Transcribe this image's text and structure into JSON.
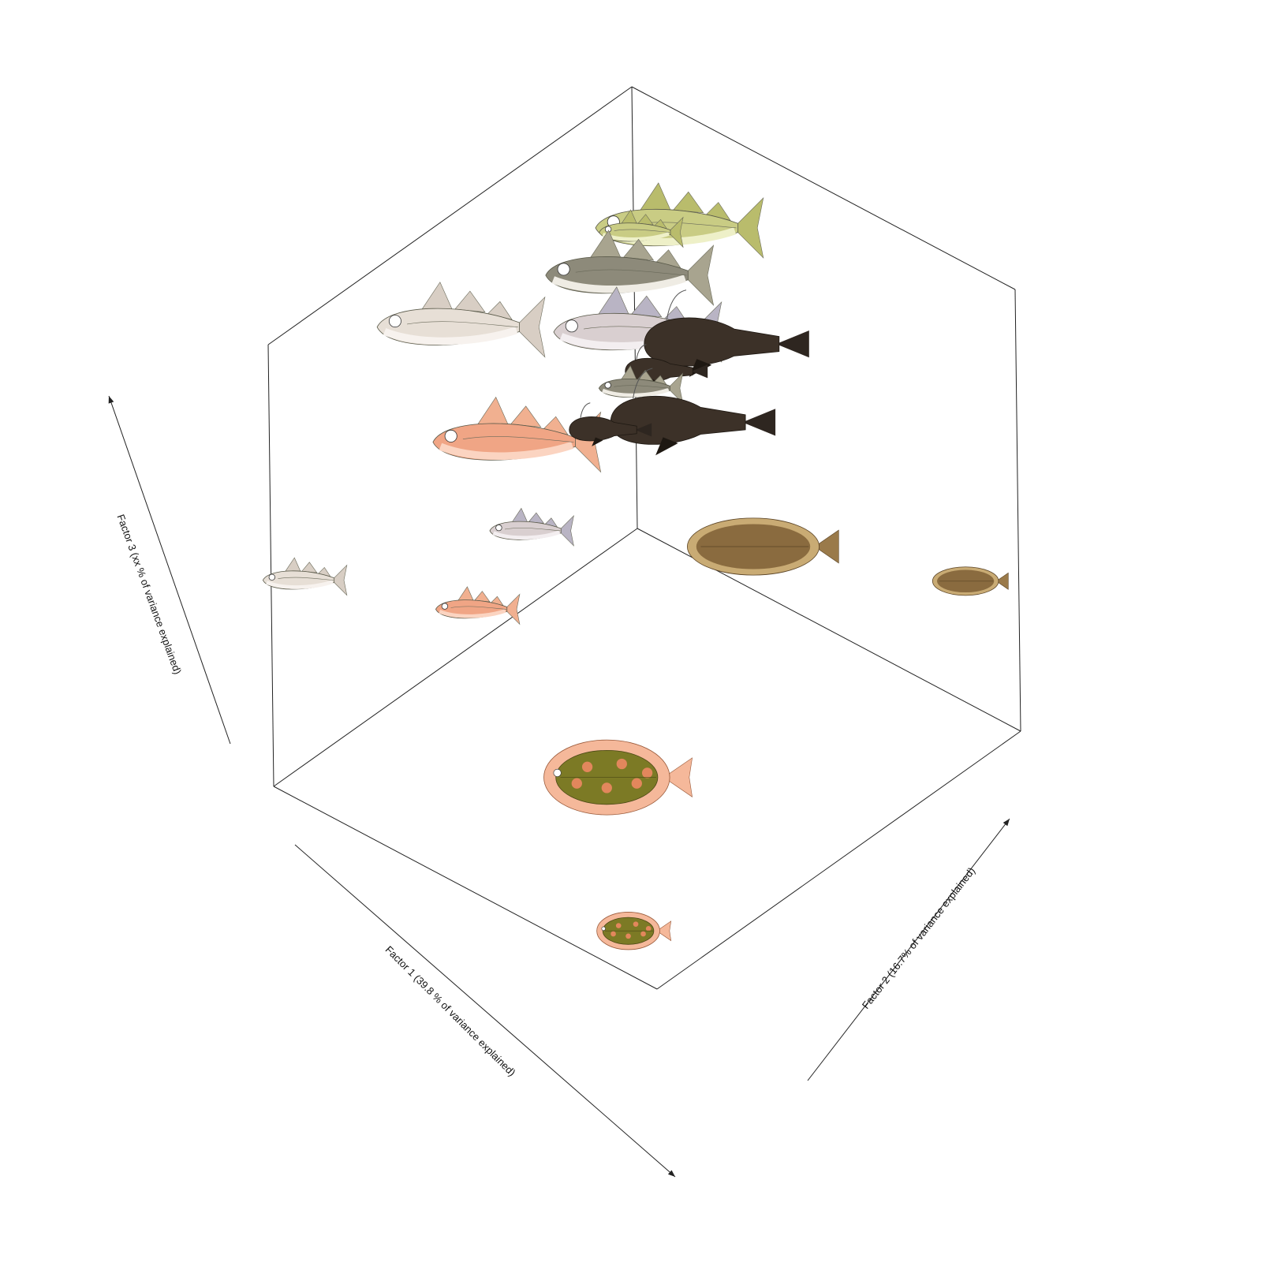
{
  "chart_data": {
    "type": "scatter",
    "projection": "3d",
    "title": "",
    "xlabel": "Factor 1 (39.8 % of variance explained)",
    "ylabel": "Factor 2 (16.7% of variance explained)",
    "zlabel": "Factor 3 (xx % of variance explained)",
    "grid": false,
    "legend": "none",
    "xlim": [
      0,
      1
    ],
    "ylim": [
      0,
      1
    ],
    "zlim": [
      0,
      1
    ],
    "marker": "fish illustration",
    "points": [
      {
        "species": "cod",
        "size": "large",
        "x": 0.19,
        "y": 0.28,
        "z": 0.92
      },
      {
        "species": "cod",
        "size": "small",
        "x": 0.22,
        "y": 0.22,
        "z": 0.9
      },
      {
        "species": "haddock",
        "size": "large",
        "x": 0.55,
        "y": 0.05,
        "z": 0.8
      },
      {
        "species": "saithe",
        "size": "large",
        "x": 0.12,
        "y": 0.08,
        "z": 0.68
      },
      {
        "species": "hake",
        "size": "large",
        "x": 0.1,
        "y": 0.08,
        "z": 0.54
      },
      {
        "species": "anglerfish",
        "size": "large",
        "x": 0.03,
        "y": 0.25,
        "z": 0.55
      },
      {
        "species": "anglerfish",
        "size": "small",
        "x": 0.05,
        "y": 0.12,
        "z": 0.44
      },
      {
        "species": "saithe",
        "size": "small",
        "x": 0.06,
        "y": 0.06,
        "z": 0.38
      },
      {
        "species": "anglerfish",
        "size": "large",
        "x": 0.0,
        "y": 0.13,
        "z": 0.3
      },
      {
        "species": "redfish",
        "size": "large",
        "x": 0.35,
        "y": 0.0,
        "z": 0.4
      },
      {
        "species": "anglerfish",
        "size": "small",
        "x": 0.08,
        "y": 0.0,
        "z": 0.27
      },
      {
        "species": "haddock",
        "size": "small",
        "x": 0.92,
        "y": 0.0,
        "z": 0.42
      },
      {
        "species": "hake",
        "size": "small",
        "x": 0.3,
        "y": 0.0,
        "z": 0.17
      },
      {
        "species": "redfish",
        "size": "small",
        "x": 0.45,
        "y": 0.0,
        "z": 0.08
      },
      {
        "species": "sole",
        "size": "large",
        "x": 0.1,
        "y": 0.42,
        "z": 0.21
      },
      {
        "species": "sole",
        "size": "small",
        "x": 0.0,
        "y": 0.87,
        "z": 0.28
      },
      {
        "species": "plaice",
        "size": "large",
        "x": 0.58,
        "y": 0.49,
        "z": 0.0
      },
      {
        "species": "plaice",
        "size": "small",
        "x": 0.9,
        "y": 0.84,
        "z": 0.0
      }
    ],
    "colors": {
      "frame": "#222222",
      "cod": "#c9cc84",
      "haddock": "#e7dfd6",
      "saithe": "#8d8a7a",
      "hake": "#d9cfd0",
      "anglerfish": "#3c3128",
      "redfish": "#f0a585",
      "sole": "#8a6b3f",
      "plaice": "#7c7a25",
      "plaice_spot": "#e2875c",
      "plaice_fin": "#f5b89a"
    }
  }
}
